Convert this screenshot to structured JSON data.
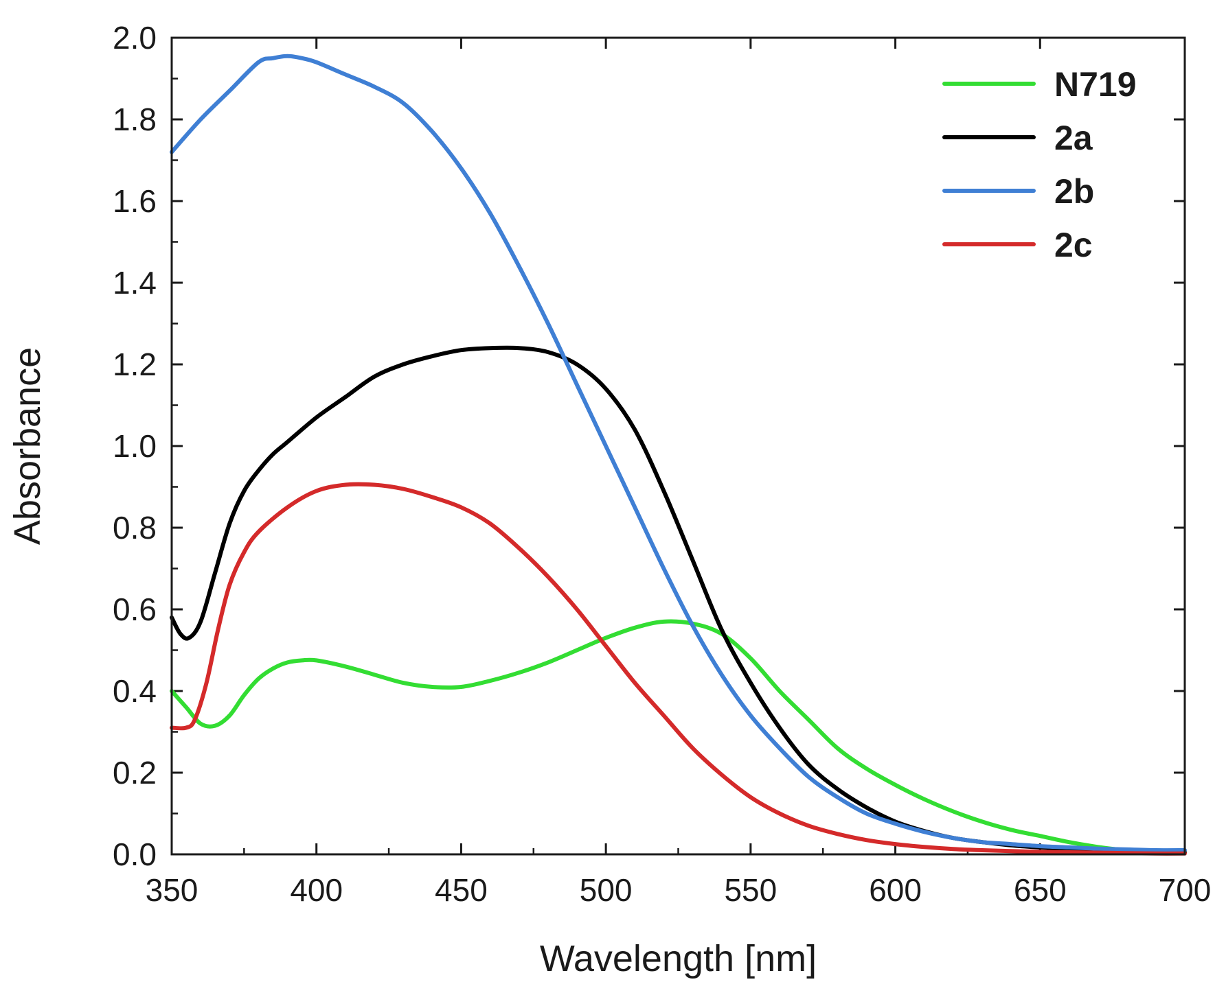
{
  "chart_data": {
    "type": "line",
    "title": "",
    "xlabel": "Wavelength [nm]",
    "ylabel": "Absorbance",
    "xlim": [
      350,
      700
    ],
    "ylim": [
      0.0,
      2.0
    ],
    "xticks": [
      350,
      400,
      450,
      500,
      550,
      600,
      650,
      700
    ],
    "xtick_labels": [
      "350",
      "400",
      "450",
      "500",
      "550",
      "600",
      "650",
      "700"
    ],
    "yticks": [
      0.0,
      0.2,
      0.4,
      0.6,
      0.8,
      1.0,
      1.2,
      1.4,
      1.6,
      1.8,
      2.0
    ],
    "ytick_labels": [
      "0.0",
      "0.2",
      "0.4",
      "0.6",
      "0.8",
      "1.0",
      "1.2",
      "1.4",
      "1.6",
      "1.8",
      "2.0"
    ],
    "grid": false,
    "legend_position": "top-right",
    "series": [
      {
        "name": "N719",
        "color": "#33dd33",
        "x": [
          350,
          355,
          360,
          365,
          370,
          375,
          380,
          385,
          390,
          395,
          400,
          410,
          420,
          430,
          440,
          450,
          460,
          470,
          480,
          490,
          500,
          510,
          520,
          530,
          540,
          550,
          560,
          570,
          580,
          590,
          600,
          610,
          620,
          630,
          640,
          650,
          660,
          670,
          680,
          690,
          700
        ],
        "y": [
          0.4,
          0.36,
          0.32,
          0.315,
          0.34,
          0.39,
          0.43,
          0.455,
          0.47,
          0.475,
          0.475,
          0.46,
          0.44,
          0.42,
          0.41,
          0.41,
          0.425,
          0.445,
          0.47,
          0.5,
          0.53,
          0.555,
          0.57,
          0.565,
          0.54,
          0.48,
          0.4,
          0.33,
          0.26,
          0.21,
          0.17,
          0.135,
          0.105,
          0.08,
          0.06,
          0.045,
          0.03,
          0.018,
          0.01,
          0.006,
          0.005
        ]
      },
      {
        "name": "2a",
        "color": "#000000",
        "x": [
          350,
          353,
          356,
          360,
          365,
          370,
          375,
          380,
          385,
          390,
          400,
          410,
          420,
          430,
          440,
          450,
          460,
          470,
          480,
          490,
          500,
          510,
          520,
          530,
          540,
          550,
          560,
          570,
          580,
          590,
          600,
          610,
          620,
          630,
          640,
          650,
          660,
          670,
          680,
          690,
          700
        ],
        "y": [
          0.58,
          0.54,
          0.53,
          0.57,
          0.69,
          0.81,
          0.89,
          0.94,
          0.98,
          1.01,
          1.07,
          1.12,
          1.17,
          1.2,
          1.22,
          1.235,
          1.24,
          1.24,
          1.23,
          1.2,
          1.14,
          1.04,
          0.89,
          0.72,
          0.55,
          0.42,
          0.31,
          0.22,
          0.16,
          0.115,
          0.08,
          0.057,
          0.04,
          0.03,
          0.022,
          0.017,
          0.013,
          0.01,
          0.008,
          0.006,
          0.005
        ]
      },
      {
        "name": "2b",
        "color": "#3f7fd4",
        "x": [
          350,
          360,
          370,
          380,
          385,
          390,
          395,
          400,
          410,
          420,
          430,
          440,
          450,
          460,
          470,
          480,
          490,
          500,
          510,
          520,
          530,
          540,
          550,
          560,
          570,
          580,
          590,
          600,
          610,
          620,
          630,
          640,
          650,
          660,
          670,
          680,
          690,
          700
        ],
        "y": [
          1.72,
          1.8,
          1.87,
          1.94,
          1.95,
          1.955,
          1.95,
          1.94,
          1.91,
          1.88,
          1.84,
          1.77,
          1.68,
          1.57,
          1.44,
          1.3,
          1.15,
          1.0,
          0.85,
          0.7,
          0.56,
          0.44,
          0.34,
          0.26,
          0.19,
          0.14,
          0.1,
          0.075,
          0.055,
          0.04,
          0.03,
          0.025,
          0.02,
          0.017,
          0.014,
          0.012,
          0.01,
          0.01
        ]
      },
      {
        "name": "2c",
        "color": "#d42a2a",
        "x": [
          350,
          355,
          358,
          362,
          366,
          370,
          375,
          380,
          390,
          400,
          410,
          420,
          430,
          440,
          450,
          460,
          470,
          480,
          490,
          500,
          510,
          520,
          530,
          540,
          550,
          560,
          570,
          580,
          590,
          600,
          610,
          620,
          630,
          640,
          650,
          660,
          670,
          680,
          690,
          700
        ],
        "y": [
          0.31,
          0.31,
          0.33,
          0.42,
          0.55,
          0.66,
          0.74,
          0.79,
          0.85,
          0.89,
          0.905,
          0.905,
          0.895,
          0.875,
          0.85,
          0.81,
          0.75,
          0.68,
          0.6,
          0.51,
          0.42,
          0.34,
          0.26,
          0.195,
          0.14,
          0.1,
          0.07,
          0.05,
          0.035,
          0.025,
          0.018,
          0.013,
          0.01,
          0.008,
          0.006,
          0.005,
          0.004,
          0.003,
          0.002,
          0.002
        ]
      }
    ]
  }
}
